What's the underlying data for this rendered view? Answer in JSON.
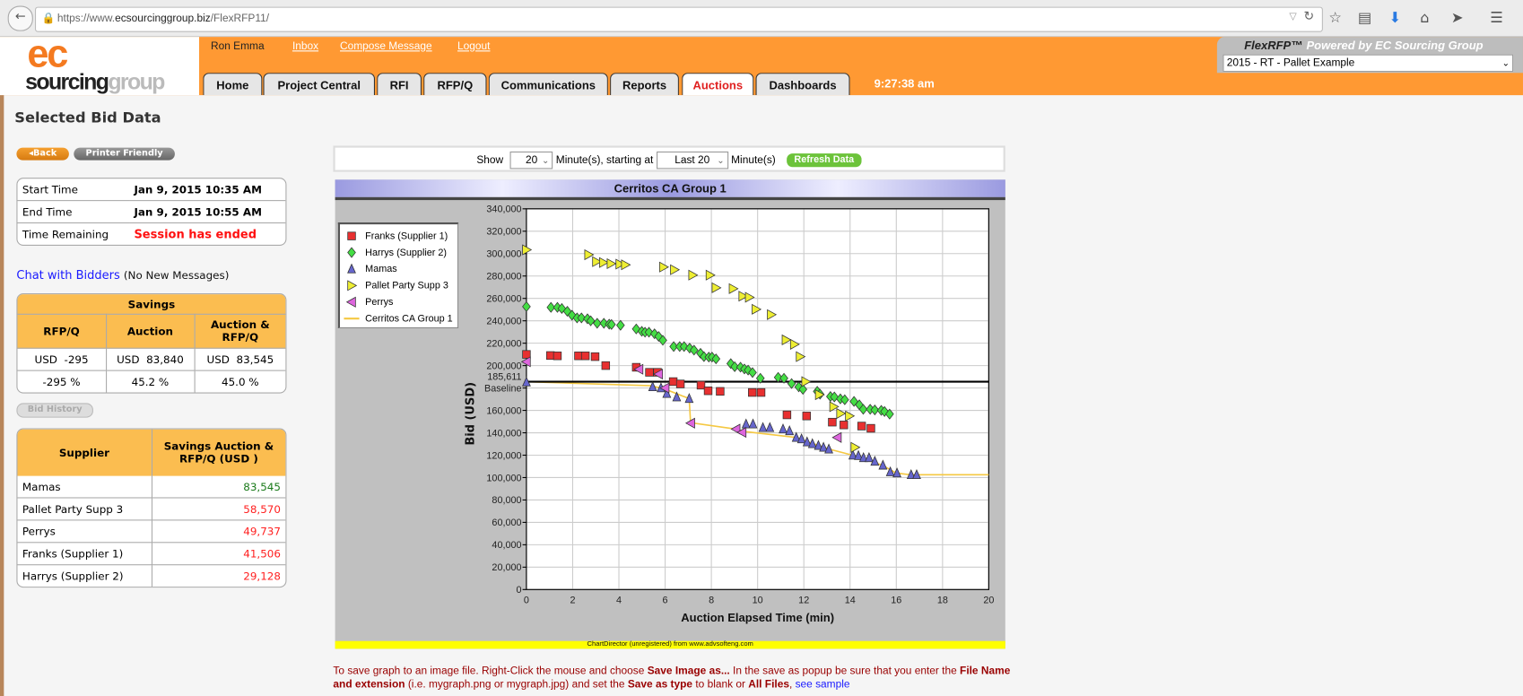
{
  "browser": {
    "url_prefix": "https://www.",
    "url_host": "ecsourcinggroup.biz",
    "url_path": "/FlexRFP11/"
  },
  "header": {
    "logo_top": "ec",
    "logo_bottom_a": "sourcing",
    "logo_bottom_b": "group",
    "user": "Ron Emma",
    "links": [
      "Inbox",
      "Compose Message",
      "Logout"
    ],
    "product": "FlexRFP™",
    "powered_by": "Powered by EC Sourcing Group",
    "project_select": "2015 - RT - Pallet Example",
    "tabs": [
      "Home",
      "Project Central",
      "RFI",
      "RFP/Q",
      "Communications",
      "Reports",
      "Auctions",
      "Dashboards"
    ],
    "active_tab": "Auctions",
    "clock": "9:27:38 am"
  },
  "left": {
    "title": "Selected Bid Data",
    "back_label": "◂Back",
    "printer_label": "Printer Friendly",
    "info": [
      {
        "label": "Start Time",
        "value": "Jan 9, 2015 10:35 AM"
      },
      {
        "label": "End Time",
        "value": "Jan 9, 2015 10:55 AM"
      },
      {
        "label": "Time Remaining",
        "value": "Session has ended"
      }
    ],
    "chat_link": "Chat with Bidders",
    "chat_status": "(No New Messages)",
    "savings": {
      "title": "Savings",
      "headers": [
        "RFP/Q",
        "Auction",
        "Auction & RFP/Q"
      ],
      "amounts": [
        "USD  -295",
        "USD  83,840",
        "USD  83,545"
      ],
      "percents": [
        "-295 %",
        "45.2 %",
        "45.0 %"
      ]
    },
    "bid_history_label": "Bid History",
    "suppliers": {
      "headers": [
        "Supplier",
        "Savings Auction & RFP/Q (USD )"
      ],
      "rows": [
        {
          "name": "Mamas",
          "value": "83,545",
          "color": "#1a7a1a"
        },
        {
          "name": "Pallet Party Supp 3",
          "value": "58,570",
          "color": "#ff2020"
        },
        {
          "name": "Perrys",
          "value": "49,737",
          "color": "#ff2020"
        },
        {
          "name": "Franks (Supplier 1)",
          "value": "41,506",
          "color": "#ff2020"
        },
        {
          "name": "Harrys (Supplier 2)",
          "value": "29,128",
          "color": "#ff2020"
        }
      ]
    }
  },
  "controls": {
    "show": "Show",
    "minutes_value": "20",
    "minutes_label": "Minute(s), starting at",
    "start_value": "Last 20",
    "minutes_label2": "Minute(s)",
    "refresh": "Refresh Data"
  },
  "chart_data": {
    "type": "scatter",
    "title": "Cerritos CA Group 1",
    "xlabel": "Auction Elapsed Time (min)",
    "ylabel": "Bid (USD)",
    "xlim": [
      0,
      20
    ],
    "ylim": [
      0,
      340000
    ],
    "xticks": [
      "0",
      "2",
      "4",
      "6",
      "8",
      "10",
      "12",
      "14",
      "16",
      "18",
      "20"
    ],
    "yticks": [
      "0",
      "20,000",
      "40,000",
      "60,000",
      "80,000",
      "100,000",
      "120,000",
      "140,000",
      "160,000",
      "180,000",
      "200,000",
      "220,000",
      "240,000",
      "260,000",
      "280,000",
      "300,000",
      "320,000",
      "340,000"
    ],
    "grid": true,
    "legend": "top-left",
    "baseline": {
      "value": 185611,
      "label_value": "185,611",
      "label": "Baseline"
    },
    "footer": "ChartDirector (unregistered) from www.advsofteng.com",
    "series": [
      {
        "name": "Franks (Supplier 1)",
        "marker": "square",
        "color": "#e83030",
        "points": [
          [
            0,
            210000
          ],
          [
            1.04,
            209000
          ],
          [
            1.34,
            208700
          ],
          [
            2.25,
            208700
          ],
          [
            2.55,
            208700
          ],
          [
            2.97,
            208000
          ],
          [
            3.43,
            200000
          ],
          [
            4.75,
            198500
          ],
          [
            5.32,
            194000
          ],
          [
            5.67,
            194000
          ],
          [
            6.35,
            185700
          ],
          [
            6.66,
            183600
          ],
          [
            7.55,
            182500
          ],
          [
            7.86,
            177500
          ],
          [
            8.38,
            177000
          ],
          [
            9.77,
            176000
          ],
          [
            10.15,
            176000
          ],
          [
            11.27,
            156000
          ],
          [
            12.12,
            155000
          ],
          [
            13.23,
            149500
          ],
          [
            13.73,
            147000
          ],
          [
            14.5,
            146000
          ],
          [
            14.9,
            144000
          ]
        ]
      },
      {
        "name": "Harrys (Supplier 2)",
        "marker": "diamond",
        "color": "#44dd44",
        "points": [
          [
            0,
            252700
          ],
          [
            1.06,
            252000
          ],
          [
            1.34,
            252000
          ],
          [
            1.53,
            251000
          ],
          [
            1.77,
            248500
          ],
          [
            1.97,
            245000
          ],
          [
            2.19,
            242600
          ],
          [
            2.38,
            242600
          ],
          [
            2.64,
            241800
          ],
          [
            2.78,
            240000
          ],
          [
            3.06,
            237800
          ],
          [
            3.35,
            237800
          ],
          [
            3.58,
            237000
          ],
          [
            3.68,
            236700
          ],
          [
            4.07,
            236000
          ],
          [
            4.75,
            232700
          ],
          [
            4.99,
            230600
          ],
          [
            5.13,
            229800
          ],
          [
            5.3,
            229800
          ],
          [
            5.54,
            228400
          ],
          [
            5.72,
            226000
          ],
          [
            5.9,
            222600
          ],
          [
            6.37,
            217000
          ],
          [
            6.63,
            217000
          ],
          [
            6.82,
            217000
          ],
          [
            7.06,
            215600
          ],
          [
            7.25,
            213800
          ],
          [
            7.53,
            211000
          ],
          [
            7.68,
            208000
          ],
          [
            7.89,
            207600
          ],
          [
            8.03,
            207600
          ],
          [
            8.2,
            206000
          ],
          [
            8.84,
            201800
          ],
          [
            9.01,
            199000
          ],
          [
            9.26,
            198600
          ],
          [
            9.43,
            197000
          ],
          [
            9.59,
            196000
          ],
          [
            9.78,
            193800
          ],
          [
            10.12,
            188700
          ],
          [
            10.89,
            189500
          ],
          [
            11.14,
            188700
          ],
          [
            11.47,
            184000
          ],
          [
            11.78,
            181000
          ],
          [
            11.96,
            178800
          ],
          [
            12.58,
            177000
          ],
          [
            12.7,
            174500
          ],
          [
            13.15,
            172400
          ],
          [
            13.32,
            172000
          ],
          [
            13.58,
            170300
          ],
          [
            13.77,
            169500
          ],
          [
            14.17,
            168000
          ],
          [
            14.4,
            165000
          ],
          [
            14.57,
            161000
          ],
          [
            14.87,
            161000
          ],
          [
            15.07,
            160400
          ],
          [
            15.35,
            160000
          ],
          [
            15.49,
            159000
          ],
          [
            15.71,
            156700
          ]
        ]
      },
      {
        "name": "Mamas",
        "marker": "triangle-up",
        "color": "#6666cc",
        "points": [
          [
            0,
            185200
          ],
          [
            5.46,
            181000
          ],
          [
            5.82,
            180000
          ],
          [
            6.07,
            175000
          ],
          [
            6.5,
            171900
          ],
          [
            7.04,
            170500
          ],
          [
            9.5,
            147800
          ],
          [
            9.8,
            147800
          ],
          [
            10.23,
            144600
          ],
          [
            10.53,
            144600
          ],
          [
            11.1,
            143300
          ],
          [
            11.38,
            141700
          ],
          [
            11.67,
            135800
          ],
          [
            11.9,
            134500
          ],
          [
            12.14,
            131800
          ],
          [
            12.37,
            130200
          ],
          [
            12.63,
            128600
          ],
          [
            12.85,
            127000
          ],
          [
            13.08,
            125400
          ],
          [
            14.12,
            120000
          ],
          [
            14.36,
            119600
          ],
          [
            14.58,
            117700
          ],
          [
            14.82,
            117700
          ],
          [
            15.07,
            114500
          ],
          [
            15.42,
            111000
          ],
          [
            15.74,
            105000
          ],
          [
            16.03,
            104000
          ],
          [
            16.64,
            102500
          ],
          [
            16.88,
            102500
          ]
        ]
      },
      {
        "name": "Pallet Party Supp 3",
        "marker": "triangle-right",
        "color": "#eeee33",
        "points": [
          [
            0,
            303400
          ],
          [
            2.69,
            299000
          ],
          [
            3.03,
            292800
          ],
          [
            3.33,
            292000
          ],
          [
            3.66,
            291000
          ],
          [
            4.04,
            290600
          ],
          [
            4.28,
            290000
          ],
          [
            5.93,
            288000
          ],
          [
            6.4,
            285600
          ],
          [
            7.19,
            280800
          ],
          [
            7.94,
            280800
          ],
          [
            8.2,
            269500
          ],
          [
            8.94,
            268700
          ],
          [
            9.36,
            262000
          ],
          [
            9.64,
            261000
          ],
          [
            9.93,
            250300
          ],
          [
            10.59,
            245500
          ],
          [
            11.23,
            223000
          ],
          [
            11.59,
            219000
          ],
          [
            11.84,
            208000
          ],
          [
            12.08,
            185700
          ],
          [
            12.67,
            174000
          ],
          [
            13.29,
            163300
          ],
          [
            13.59,
            157200
          ],
          [
            13.97,
            155000
          ],
          [
            14.21,
            127000
          ]
        ]
      },
      {
        "name": "Perrys",
        "marker": "triangle-left",
        "color": "#dd66dd",
        "points": [
          [
            0,
            203400
          ],
          [
            4.87,
            196700
          ],
          [
            5.72,
            192400
          ],
          [
            6.0,
            180000
          ],
          [
            7.11,
            148600
          ],
          [
            9.07,
            143300
          ],
          [
            9.33,
            140400
          ],
          [
            13.45,
            135800
          ]
        ]
      },
      {
        "name": "Cerritos CA Group 1",
        "marker": "line",
        "color": "#f5c842",
        "points": [
          [
            0,
            185611
          ],
          [
            5.4,
            182000
          ],
          [
            6.0,
            179000
          ],
          [
            7.04,
            170500
          ],
          [
            7.1,
            149000
          ],
          [
            9.0,
            143500
          ],
          [
            9.5,
            141000
          ],
          [
            11.6,
            136000
          ],
          [
            13.1,
            125400
          ],
          [
            14.1,
            120000
          ],
          [
            15.4,
            111000
          ],
          [
            16.0,
            104000
          ],
          [
            16.6,
            102500
          ],
          [
            20,
            102500
          ]
        ]
      }
    ]
  },
  "note": {
    "p1": "To save graph to an image file. Right-Click the mouse and choose ",
    "b1": "Save Image as...",
    "p2": " In the save as popup be sure that you enter the ",
    "b2": "File Name and extension",
    "p3": " (i.e. mygraph.png or mygraph.jpg) and set the ",
    "b3": "Save as type",
    "p4": " to blank or ",
    "b4": "All Files",
    "p5": ", ",
    "link": "see sample"
  }
}
